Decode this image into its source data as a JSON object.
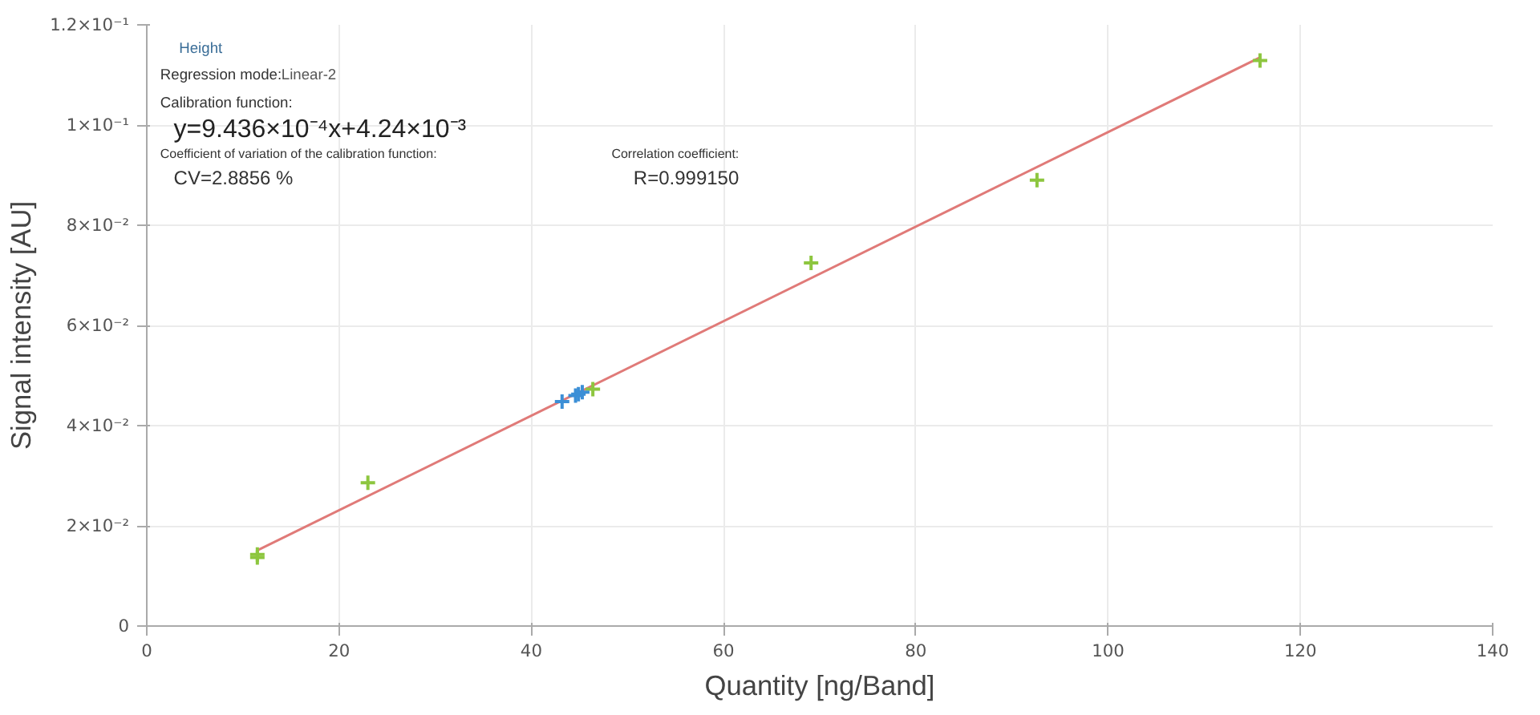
{
  "chart_data": {
    "type": "scatter",
    "xlabel": "Quantity [ng/Band]",
    "ylabel": "Signal intensity [AU]",
    "xlim": [
      0,
      140
    ],
    "xticks": [
      0,
      20,
      40,
      60,
      80,
      100,
      120,
      140
    ],
    "ylim": [
      0,
      0.12
    ],
    "yticks": [
      {
        "value": 0,
        "label": "0"
      },
      {
        "value": 0.02,
        "label": "2×10⁻²"
      },
      {
        "value": 0.04,
        "label": "4×10⁻²"
      },
      {
        "value": 0.06,
        "label": "6×10⁻²"
      },
      {
        "value": 0.08,
        "label": "8×10⁻²"
      },
      {
        "value": 0.1,
        "label": "1×10⁻¹"
      },
      {
        "value": 0.12,
        "label": "1.2×10⁻¹"
      }
    ],
    "grid": true,
    "series": [
      {
        "type": "line",
        "color": "#e07a78",
        "x": [
          11.5,
          115.8
        ],
        "values": [
          0.0151,
          0.1135
        ]
      },
      {
        "marker": "cross",
        "color": "#8dc63f",
        "x": [
          11.5,
          11.5,
          23,
          46.4,
          69.1,
          92.6,
          115.8
        ],
        "values": [
          0.0143,
          0.0137,
          0.0286,
          0.0473,
          0.0725,
          0.089,
          0.1129
        ]
      },
      {
        "marker": "cross",
        "color": "#3c8fd6",
        "x": [
          43.2,
          44.6,
          44.9,
          45.3
        ],
        "values": [
          0.0448,
          0.046,
          0.0463,
          0.0467
        ]
      }
    ],
    "annotations": [
      "Height",
      "Regression mode:",
      "Linear-2",
      "Calibration function:",
      "y=9.436×10⁻⁴x+4.24×10⁻³",
      "Coefficient of variation of the calibration function:",
      "Correlation coefficient:",
      "CV=2.8856 %",
      "R=0.999150"
    ]
  }
}
